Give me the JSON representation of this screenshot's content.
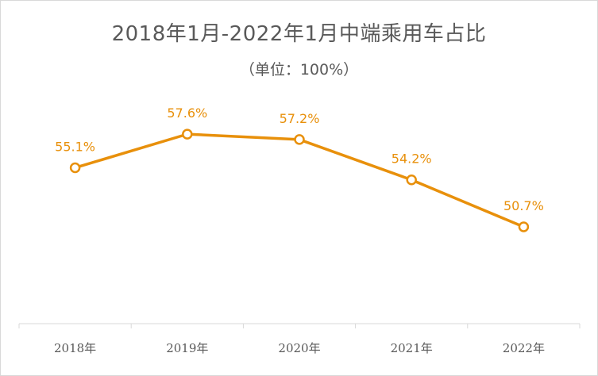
{
  "chart_data": {
    "type": "line",
    "title": "2018年1月-2022年1月中端乘用车占比",
    "subtitle": "（单位：100%）",
    "categories": [
      "2018年",
      "2019年",
      "2020年",
      "2021年",
      "2022年"
    ],
    "series": [
      {
        "values": [
          55.1,
          57.6,
          57.2,
          54.2,
          50.7
        ],
        "labels": [
          "55.1%",
          "57.6%",
          "57.2%",
          "54.2%",
          "50.7%"
        ],
        "color": "#e8900b"
      }
    ],
    "ylim": [
      43.5,
      60.5
    ],
    "grid": false,
    "legend": "none"
  }
}
